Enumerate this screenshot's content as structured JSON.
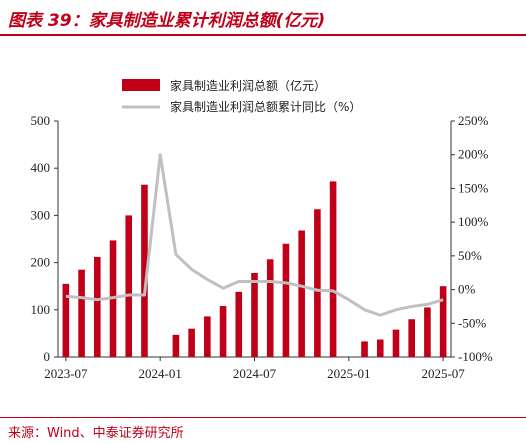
{
  "header": {
    "title": "图表 39：家具制造业累计利润总额(亿元)"
  },
  "footer": {
    "source": "来源：Wind、中泰证券研究所"
  },
  "chart_data": {
    "type": "bar",
    "categories": [
      "2023-07",
      "2023-08",
      "2023-09",
      "2023-10",
      "2023-11",
      "2023-12",
      "2024-01",
      "2024-02",
      "2024-03",
      "2024-04",
      "2024-05",
      "2024-06",
      "2024-07",
      "2024-08",
      "2024-09",
      "2024-10",
      "2024-11",
      "2024-12",
      "2025-01",
      "2025-02",
      "2025-03",
      "2025-04",
      "2025-05",
      "2025-06",
      "2025-07"
    ],
    "x_tick_labels": [
      "2023-07",
      "2024-01",
      "2024-07",
      "2025-01",
      "2025-07"
    ],
    "x_tick_indices": [
      0,
      6,
      12,
      18,
      24
    ],
    "series": [
      {
        "name": "家具制造业利润总额（亿元）",
        "type": "bar",
        "axis": "left",
        "color": "#c00018",
        "values": [
          155,
          185,
          212,
          247,
          300,
          365,
          null,
          47,
          60,
          86,
          108,
          138,
          178,
          207,
          240,
          268,
          313,
          372,
          null,
          33,
          37,
          58,
          80,
          105,
          150
        ]
      },
      {
        "name": "家具制造业利润总额累计同比（%）",
        "type": "line",
        "axis": "right",
        "color": "#c0c0c0",
        "values": [
          -10,
          -12,
          -15,
          -12,
          -8,
          -8,
          200,
          52,
          30,
          15,
          2,
          12,
          12,
          12,
          10,
          5,
          -1,
          -2,
          -15,
          -30,
          -38,
          -30,
          -25,
          -22,
          -15
        ]
      }
    ],
    "y_left": {
      "range": [
        0,
        500
      ],
      "ticks": [
        0,
        100,
        200,
        300,
        400,
        500
      ],
      "tick_labels": [
        "0",
        "100",
        "200",
        "300",
        "400",
        "500"
      ]
    },
    "y_right": {
      "range": [
        -100,
        250
      ],
      "ticks": [
        -100,
        -50,
        0,
        50,
        100,
        150,
        200,
        250
      ],
      "tick_labels": [
        "-100%",
        "-50%",
        "0%",
        "50%",
        "100%",
        "150%",
        "200%",
        "250%"
      ]
    },
    "grid": false,
    "legend_position": "top-center"
  }
}
